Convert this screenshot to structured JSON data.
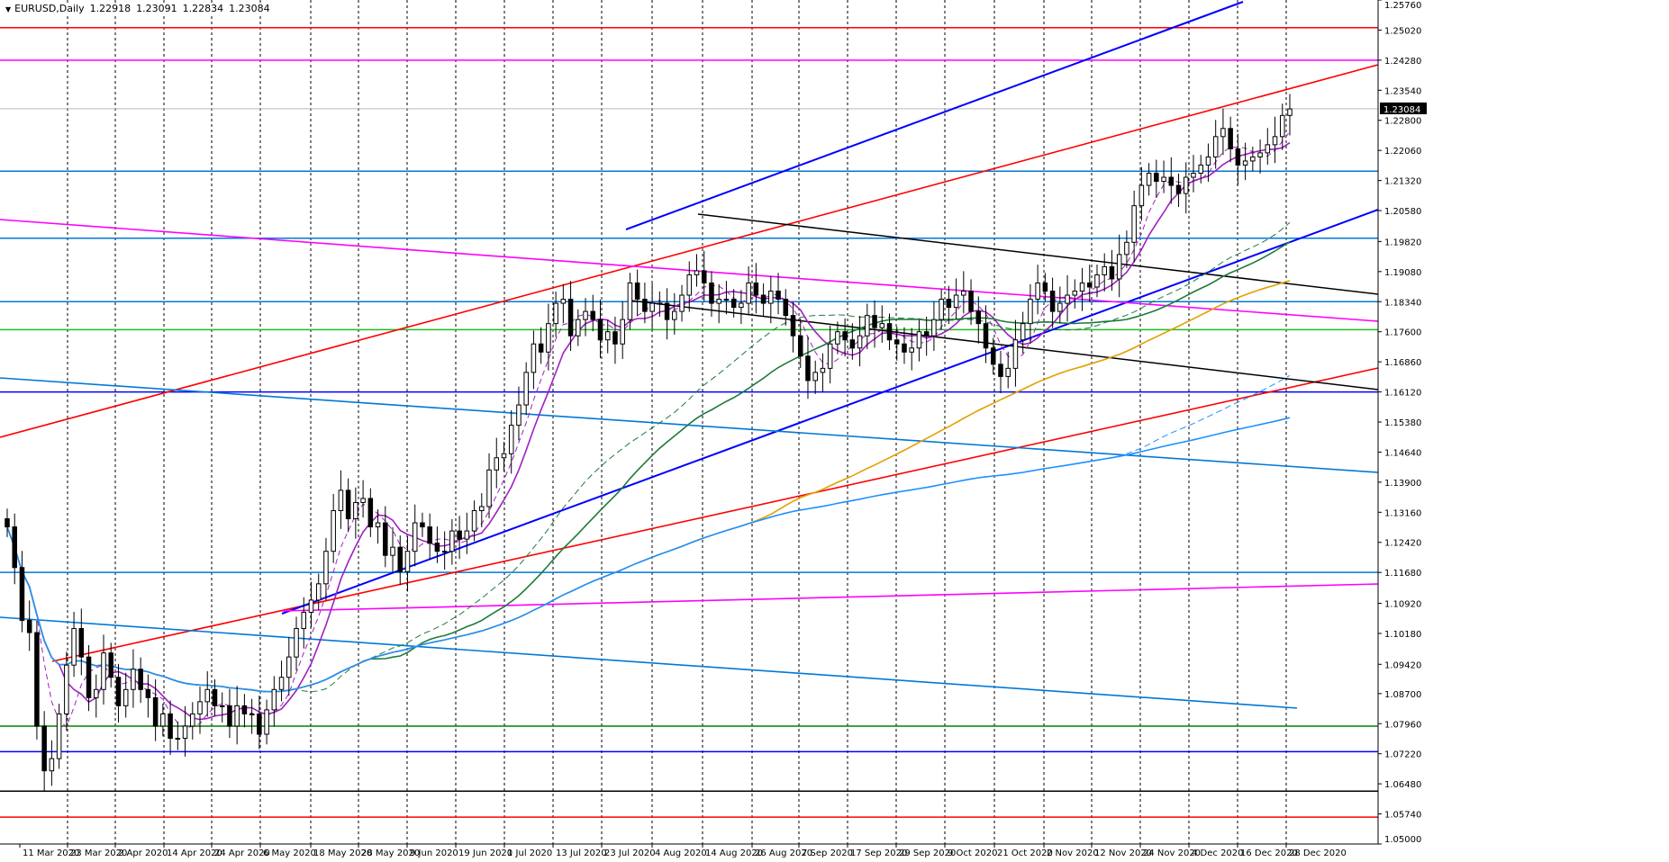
{
  "chart_header": {
    "symbol": "EURUSD,Daily",
    "open": "1.22918",
    "high": "1.23091",
    "low": "1.22834",
    "close": "1.23084"
  },
  "colors": {
    "background": "#ffffff",
    "frame": "#000000",
    "candle_up": "#ffffff",
    "candle_down": "#000000",
    "red_line": "#ff0000",
    "magenta_line": "#ff00ff",
    "blue_line": "#0000ff",
    "steelblue_line": "#0078d7",
    "green_line": "#008000",
    "purple_ma": "#a020c0",
    "darkgreen_ma": "#1e7a3a",
    "orange_ma": "#e0a000",
    "lightblue_ma": "#1e90ff",
    "price_label_bg": "#000000",
    "price_label_fg": "#ffffff"
  },
  "chart_data": {
    "type": "candlestick",
    "title": "",
    "xlabel": "",
    "ylabel": "",
    "ylim": [
      1.05,
      1.2576
    ],
    "grid": "vertical dashed",
    "current_price_label": "1.23084",
    "x_tick_labels": [
      "11 Mar 2020",
      "23 Mar 2020",
      "2 Apr 2020",
      "14 Apr 2020",
      "24 Apr 2020",
      "6 May 2020",
      "18 May 2020",
      "28 May 2020",
      "9 Jun 2020",
      "19 Jun 2020",
      "1 Jul 2020",
      "13 Jul 2020",
      "23 Jul 2020",
      "4 Aug 2020",
      "14 Aug 2020",
      "26 Aug 2020",
      "7 Sep 2020",
      "17 Sep 2020",
      "29 Sep 2020",
      "9 Oct 2020",
      "21 Oct 2020",
      "2 Nov 2020",
      "12 Nov 2020",
      "24 Nov 2020",
      "4 Dec 2020",
      "16 Dec 2020",
      "28 Dec 2020"
    ],
    "y_tick_labels": [
      "1.25760",
      "1.25020",
      "1.24280",
      "1.23540",
      "1.22800",
      "1.22060",
      "1.21320",
      "1.20580",
      "1.19820",
      "1.19080",
      "1.18340",
      "1.17600",
      "1.16860",
      "1.16120",
      "1.15380",
      "1.14640",
      "1.13900",
      "1.13160",
      "1.12420",
      "1.11680",
      "1.10920",
      "1.10180",
      "1.09420",
      "1.08700",
      "1.07960",
      "1.07220",
      "1.06480",
      "1.05740",
      "1.05000"
    ],
    "closes": [
      1.128,
      1.118,
      1.105,
      1.102,
      1.079,
      1.068,
      1.071,
      1.082,
      1.094,
      1.103,
      1.096,
      1.086,
      1.088,
      1.097,
      1.091,
      1.084,
      1.088,
      1.093,
      1.088,
      1.086,
      1.079,
      1.082,
      1.076,
      1.076,
      1.079,
      1.082,
      1.085,
      1.088,
      1.084,
      1.084,
      1.079,
      1.084,
      1.082,
      1.082,
      1.077,
      1.083,
      1.088,
      1.091,
      1.096,
      1.103,
      1.107,
      1.11,
      1.114,
      1.122,
      1.132,
      1.137,
      1.13,
      1.134,
      1.135,
      1.128,
      1.129,
      1.121,
      1.123,
      1.117,
      1.122,
      1.129,
      1.128,
      1.124,
      1.122,
      1.122,
      1.127,
      1.125,
      1.127,
      1.132,
      1.133,
      1.142,
      1.145,
      1.146,
      1.153,
      1.158,
      1.166,
      1.173,
      1.171,
      1.178,
      1.183,
      1.184,
      1.175,
      1.179,
      1.181,
      1.179,
      1.174,
      1.176,
      1.173,
      1.179,
      1.188,
      1.184,
      1.181,
      1.183,
      1.183,
      1.179,
      1.181,
      1.185,
      1.19,
      1.191,
      1.188,
      1.183,
      1.184,
      1.184,
      1.182,
      1.183,
      1.188,
      1.185,
      1.183,
      1.186,
      1.184,
      1.18,
      1.175,
      1.17,
      1.164,
      1.166,
      1.167,
      1.173,
      1.176,
      1.174,
      1.172,
      1.175,
      1.18,
      1.177,
      1.178,
      1.174,
      1.173,
      1.171,
      1.172,
      1.176,
      1.175,
      1.179,
      1.184,
      1.182,
      1.185,
      1.186,
      1.181,
      1.178,
      1.172,
      1.168,
      1.165,
      1.167,
      1.174,
      1.178,
      1.184,
      1.188,
      1.186,
      1.181,
      1.183,
      1.185,
      1.186,
      1.188,
      1.187,
      1.19,
      1.192,
      1.189,
      1.195,
      1.198,
      1.207,
      1.212,
      1.215,
      1.213,
      1.214,
      1.212,
      1.21,
      1.214,
      1.215,
      1.217,
      1.219,
      1.224,
      1.226,
      1.221,
      1.217,
      1.218,
      1.219,
      1.22,
      1.222,
      1.224,
      1.2292,
      1.2308
    ]
  }
}
